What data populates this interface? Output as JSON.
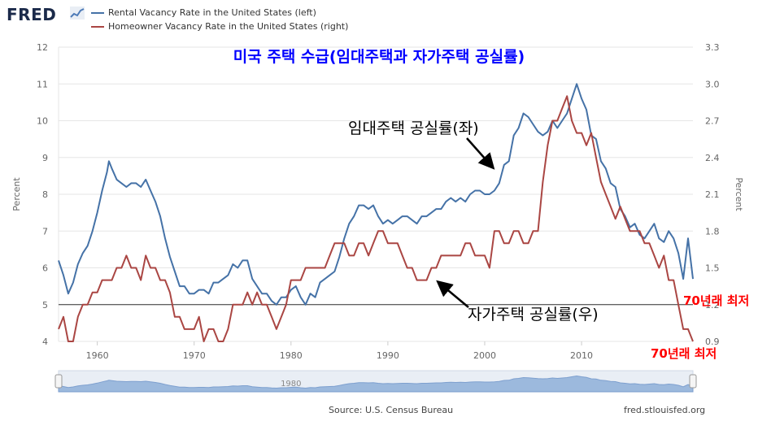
{
  "header": {
    "logo_text": "FRED",
    "logo_icon": "chart-line-icon",
    "legend": [
      {
        "label": "Rental Vacancy Rate in the United States (left)",
        "color": "#4572a7"
      },
      {
        "label": "Homeowner Vacancy Rate in the United States (right)",
        "color": "#aa4643"
      }
    ]
  },
  "footer": {
    "source": "Source: U.S. Census Bureau",
    "site": "fred.stlouisfed.org"
  },
  "navigator": {
    "label": "1980",
    "left_handle_icon": "drag-handle-icon",
    "right_handle_icon": "drag-handle-icon"
  },
  "chart_data": {
    "type": "line",
    "title": "미국 주택 수급(임대주택과 자가주택 공실률)",
    "xlabel": "",
    "ylabel_left": "Percent",
    "ylabel_right": "Percent",
    "xlim": [
      1956,
      2021.5
    ],
    "ylim_left": [
      4,
      12
    ],
    "ylim_right": [
      0.9,
      3.3
    ],
    "x_ticks": [
      "1960",
      "1970",
      "1980",
      "1990",
      "2000",
      "2010"
    ],
    "y_ticks_left": [
      "4",
      "5",
      "6",
      "7",
      "8",
      "9",
      "10",
      "11",
      "12"
    ],
    "y_ticks_right": [
      "0.9",
      "1.2",
      "1.5",
      "1.8",
      "2.1",
      "2.4",
      "2.7",
      "3.0",
      "3.3"
    ],
    "grid": true,
    "reference_line_left": 5,
    "series": [
      {
        "name": "Rental Vacancy Rate in the United States (left)",
        "axis": "left",
        "color": "#4572a7",
        "points": [
          [
            1956.0,
            6.2
          ],
          [
            1956.5,
            5.8
          ],
          [
            1957.0,
            5.3
          ],
          [
            1957.5,
            5.6
          ],
          [
            1958.0,
            6.1
          ],
          [
            1958.5,
            6.4
          ],
          [
            1959.0,
            6.6
          ],
          [
            1959.5,
            7.0
          ],
          [
            1960.0,
            7.5
          ],
          [
            1960.5,
            8.1
          ],
          [
            1961.0,
            8.6
          ],
          [
            1961.2,
            8.9
          ],
          [
            1961.5,
            8.7
          ],
          [
            1962.0,
            8.4
          ],
          [
            1962.5,
            8.3
          ],
          [
            1963.0,
            8.2
          ],
          [
            1963.5,
            8.3
          ],
          [
            1964.0,
            8.3
          ],
          [
            1964.5,
            8.2
          ],
          [
            1965.0,
            8.4
          ],
          [
            1965.5,
            8.1
          ],
          [
            1966.0,
            7.8
          ],
          [
            1966.5,
            7.4
          ],
          [
            1967.0,
            6.8
          ],
          [
            1967.5,
            6.3
          ],
          [
            1968.0,
            5.9
          ],
          [
            1968.5,
            5.5
          ],
          [
            1969.0,
            5.5
          ],
          [
            1969.5,
            5.3
          ],
          [
            1970.0,
            5.3
          ],
          [
            1970.5,
            5.4
          ],
          [
            1971.0,
            5.4
          ],
          [
            1971.5,
            5.3
          ],
          [
            1972.0,
            5.6
          ],
          [
            1972.5,
            5.6
          ],
          [
            1973.0,
            5.7
          ],
          [
            1973.5,
            5.8
          ],
          [
            1974.0,
            6.1
          ],
          [
            1974.5,
            6.0
          ],
          [
            1975.0,
            6.2
          ],
          [
            1975.5,
            6.2
          ],
          [
            1976.0,
            5.7
          ],
          [
            1976.5,
            5.5
          ],
          [
            1977.0,
            5.3
          ],
          [
            1977.5,
            5.3
          ],
          [
            1978.0,
            5.1
          ],
          [
            1978.5,
            5.0
          ],
          [
            1979.0,
            5.2
          ],
          [
            1979.5,
            5.2
          ],
          [
            1980.0,
            5.4
          ],
          [
            1980.5,
            5.5
          ],
          [
            1981.0,
            5.2
          ],
          [
            1981.5,
            5.0
          ],
          [
            1982.0,
            5.3
          ],
          [
            1982.5,
            5.2
          ],
          [
            1983.0,
            5.6
          ],
          [
            1983.5,
            5.7
          ],
          [
            1984.0,
            5.8
          ],
          [
            1984.5,
            5.9
          ],
          [
            1985.0,
            6.3
          ],
          [
            1985.5,
            6.8
          ],
          [
            1986.0,
            7.2
          ],
          [
            1986.5,
            7.4
          ],
          [
            1987.0,
            7.7
          ],
          [
            1987.5,
            7.7
          ],
          [
            1988.0,
            7.6
          ],
          [
            1988.5,
            7.7
          ],
          [
            1989.0,
            7.4
          ],
          [
            1989.5,
            7.2
          ],
          [
            1990.0,
            7.3
          ],
          [
            1990.5,
            7.2
          ],
          [
            1991.0,
            7.3
          ],
          [
            1991.5,
            7.4
          ],
          [
            1992.0,
            7.4
          ],
          [
            1992.5,
            7.3
          ],
          [
            1993.0,
            7.2
          ],
          [
            1993.5,
            7.4
          ],
          [
            1994.0,
            7.4
          ],
          [
            1994.5,
            7.5
          ],
          [
            1995.0,
            7.6
          ],
          [
            1995.5,
            7.6
          ],
          [
            1996.0,
            7.8
          ],
          [
            1996.5,
            7.9
          ],
          [
            1997.0,
            7.8
          ],
          [
            1997.5,
            7.9
          ],
          [
            1998.0,
            7.8
          ],
          [
            1998.5,
            8.0
          ],
          [
            1999.0,
            8.1
          ],
          [
            1999.5,
            8.1
          ],
          [
            2000.0,
            8.0
          ],
          [
            2000.5,
            8.0
          ],
          [
            2001.0,
            8.1
          ],
          [
            2001.5,
            8.3
          ],
          [
            2002.0,
            8.8
          ],
          [
            2002.5,
            8.9
          ],
          [
            2003.0,
            9.6
          ],
          [
            2003.5,
            9.8
          ],
          [
            2004.0,
            10.2
          ],
          [
            2004.5,
            10.1
          ],
          [
            2005.0,
            9.9
          ],
          [
            2005.5,
            9.7
          ],
          [
            2006.0,
            9.6
          ],
          [
            2006.5,
            9.7
          ],
          [
            2007.0,
            10.0
          ],
          [
            2007.5,
            9.8
          ],
          [
            2008.0,
            10.0
          ],
          [
            2008.5,
            10.2
          ],
          [
            2009.0,
            10.6
          ],
          [
            2009.5,
            11.0
          ],
          [
            2010.0,
            10.6
          ],
          [
            2010.5,
            10.3
          ],
          [
            2011.0,
            9.6
          ],
          [
            2011.5,
            9.5
          ],
          [
            2012.0,
            8.9
          ],
          [
            2012.5,
            8.7
          ],
          [
            2013.0,
            8.3
          ],
          [
            2013.5,
            8.2
          ],
          [
            2014.0,
            7.6
          ],
          [
            2014.5,
            7.4
          ],
          [
            2015.0,
            7.1
          ],
          [
            2015.5,
            7.2
          ],
          [
            2016.0,
            6.9
          ],
          [
            2016.5,
            6.8
          ],
          [
            2017.0,
            7.0
          ],
          [
            2017.5,
            7.2
          ],
          [
            2018.0,
            6.8
          ],
          [
            2018.5,
            6.7
          ],
          [
            2019.0,
            7.0
          ],
          [
            2019.5,
            6.8
          ],
          [
            2020.0,
            6.4
          ],
          [
            2020.5,
            5.7
          ],
          [
            2021.0,
            6.8
          ],
          [
            2021.5,
            5.7
          ]
        ]
      },
      {
        "name": "Homeowner Vacancy Rate in the United States (right)",
        "axis": "right",
        "color": "#aa4643",
        "points": [
          [
            1956.0,
            1.0
          ],
          [
            1956.5,
            1.1
          ],
          [
            1957.0,
            0.9
          ],
          [
            1957.5,
            0.9
          ],
          [
            1958.0,
            1.1
          ],
          [
            1958.5,
            1.2
          ],
          [
            1959.0,
            1.2
          ],
          [
            1959.5,
            1.3
          ],
          [
            1960.0,
            1.3
          ],
          [
            1960.5,
            1.4
          ],
          [
            1961.0,
            1.4
          ],
          [
            1961.5,
            1.4
          ],
          [
            1962.0,
            1.5
          ],
          [
            1962.5,
            1.5
          ],
          [
            1963.0,
            1.6
          ],
          [
            1963.5,
            1.5
          ],
          [
            1964.0,
            1.5
          ],
          [
            1964.5,
            1.4
          ],
          [
            1965.0,
            1.6
          ],
          [
            1965.5,
            1.5
          ],
          [
            1966.0,
            1.5
          ],
          [
            1966.5,
            1.4
          ],
          [
            1967.0,
            1.4
          ],
          [
            1967.5,
            1.3
          ],
          [
            1968.0,
            1.1
          ],
          [
            1968.5,
            1.1
          ],
          [
            1969.0,
            1.0
          ],
          [
            1969.5,
            1.0
          ],
          [
            1970.0,
            1.0
          ],
          [
            1970.5,
            1.1
          ],
          [
            1971.0,
            0.9
          ],
          [
            1971.5,
            1.0
          ],
          [
            1972.0,
            1.0
          ],
          [
            1972.5,
            0.9
          ],
          [
            1973.0,
            0.9
          ],
          [
            1973.5,
            1.0
          ],
          [
            1974.0,
            1.2
          ],
          [
            1974.5,
            1.2
          ],
          [
            1975.0,
            1.2
          ],
          [
            1975.5,
            1.3
          ],
          [
            1976.0,
            1.2
          ],
          [
            1976.5,
            1.3
          ],
          [
            1977.0,
            1.2
          ],
          [
            1977.5,
            1.2
          ],
          [
            1978.0,
            1.1
          ],
          [
            1978.5,
            1.0
          ],
          [
            1979.0,
            1.1
          ],
          [
            1979.5,
            1.2
          ],
          [
            1980.0,
            1.4
          ],
          [
            1980.5,
            1.4
          ],
          [
            1981.0,
            1.4
          ],
          [
            1981.5,
            1.5
          ],
          [
            1982.0,
            1.5
          ],
          [
            1982.5,
            1.5
          ],
          [
            1983.0,
            1.5
          ],
          [
            1983.5,
            1.5
          ],
          [
            1984.0,
            1.6
          ],
          [
            1984.5,
            1.7
          ],
          [
            1985.0,
            1.7
          ],
          [
            1985.5,
            1.7
          ],
          [
            1986.0,
            1.6
          ],
          [
            1986.5,
            1.6
          ],
          [
            1987.0,
            1.7
          ],
          [
            1987.5,
            1.7
          ],
          [
            1988.0,
            1.6
          ],
          [
            1988.5,
            1.7
          ],
          [
            1989.0,
            1.8
          ],
          [
            1989.5,
            1.8
          ],
          [
            1990.0,
            1.7
          ],
          [
            1990.5,
            1.7
          ],
          [
            1991.0,
            1.7
          ],
          [
            1991.5,
            1.6
          ],
          [
            1992.0,
            1.5
          ],
          [
            1992.5,
            1.5
          ],
          [
            1993.0,
            1.4
          ],
          [
            1993.5,
            1.4
          ],
          [
            1994.0,
            1.4
          ],
          [
            1994.5,
            1.5
          ],
          [
            1995.0,
            1.5
          ],
          [
            1995.5,
            1.6
          ],
          [
            1996.0,
            1.6
          ],
          [
            1996.5,
            1.6
          ],
          [
            1997.0,
            1.6
          ],
          [
            1997.5,
            1.6
          ],
          [
            1998.0,
            1.7
          ],
          [
            1998.5,
            1.7
          ],
          [
            1999.0,
            1.6
          ],
          [
            1999.5,
            1.6
          ],
          [
            2000.0,
            1.6
          ],
          [
            2000.5,
            1.5
          ],
          [
            2001.0,
            1.8
          ],
          [
            2001.5,
            1.8
          ],
          [
            2002.0,
            1.7
          ],
          [
            2002.5,
            1.7
          ],
          [
            2003.0,
            1.8
          ],
          [
            2003.5,
            1.8
          ],
          [
            2004.0,
            1.7
          ],
          [
            2004.5,
            1.7
          ],
          [
            2005.0,
            1.8
          ],
          [
            2005.5,
            1.8
          ],
          [
            2006.0,
            2.2
          ],
          [
            2006.5,
            2.5
          ],
          [
            2007.0,
            2.7
          ],
          [
            2007.5,
            2.7
          ],
          [
            2008.0,
            2.8
          ],
          [
            2008.5,
            2.9
          ],
          [
            2009.0,
            2.7
          ],
          [
            2009.5,
            2.6
          ],
          [
            2010.0,
            2.6
          ],
          [
            2010.5,
            2.5
          ],
          [
            2011.0,
            2.6
          ],
          [
            2011.5,
            2.4
          ],
          [
            2012.0,
            2.2
          ],
          [
            2012.5,
            2.1
          ],
          [
            2013.0,
            2.0
          ],
          [
            2013.5,
            1.9
          ],
          [
            2014.0,
            2.0
          ],
          [
            2014.5,
            1.9
          ],
          [
            2015.0,
            1.8
          ],
          [
            2015.5,
            1.8
          ],
          [
            2016.0,
            1.8
          ],
          [
            2016.5,
            1.7
          ],
          [
            2017.0,
            1.7
          ],
          [
            2017.5,
            1.6
          ],
          [
            2018.0,
            1.5
          ],
          [
            2018.5,
            1.6
          ],
          [
            2019.0,
            1.4
          ],
          [
            2019.5,
            1.4
          ],
          [
            2020.0,
            1.2
          ],
          [
            2020.5,
            1.0
          ],
          [
            2021.0,
            1.0
          ],
          [
            2021.5,
            0.9
          ]
        ]
      }
    ],
    "annotations": [
      {
        "text": "임대주택 공실률(좌)",
        "color": "#000000"
      },
      {
        "text": "자가주택 공실률(우)",
        "color": "#000000"
      },
      {
        "text": "70년래 최저",
        "color": "#ff0000"
      },
      {
        "text": "70년래 최저",
        "color": "#ff0000"
      }
    ]
  }
}
